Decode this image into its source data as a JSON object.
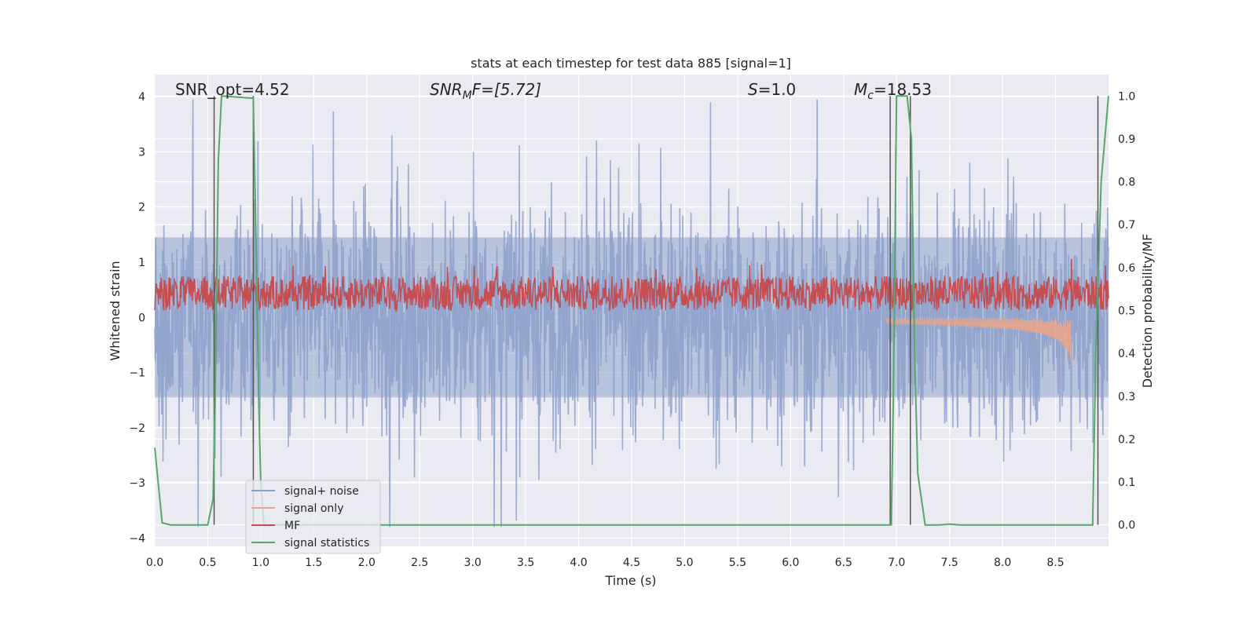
{
  "chart_data": {
    "type": "line",
    "title": "stats at each timestep for test data 885 [signal=1]",
    "xlabel": "Time (s)",
    "ylabel_left": "Whitened strain",
    "ylabel_right": "Detection probability/MF",
    "xlim": [
      0,
      9.0
    ],
    "ylim_left": [
      -4.15,
      4.4
    ],
    "ylim_right": [
      -0.05,
      1.05
    ],
    "xticks": [
      "0.0",
      "0.5",
      "1.0",
      "1.5",
      "2.0",
      "2.5",
      "3.0",
      "3.5",
      "4.0",
      "4.5",
      "5.0",
      "5.5",
      "6.0",
      "6.5",
      "7.0",
      "7.5",
      "8.0",
      "8.5"
    ],
    "yticks_left": [
      "−4",
      "−3",
      "−2",
      "−1",
      "0",
      "1",
      "2",
      "3",
      "4"
    ],
    "yticks_right": [
      "0.0",
      "0.1",
      "0.2",
      "0.3",
      "0.4",
      "0.5",
      "0.6",
      "0.7",
      "0.8",
      "0.9",
      "1.0"
    ],
    "grid": true,
    "legend_position": "lower-left",
    "annotations": {
      "snr_opt": "SNR_opt=4.52",
      "snr_mf_label": "SNR",
      "snr_mf_sub": "M",
      "snr_mf_value": "F=[5.72]",
      "s_label": "S",
      "s_value": "=1.0",
      "mc_label": "M",
      "mc_sub": "c",
      "mc_value": "=18.53"
    },
    "series": [
      {
        "name": "signal+ noise",
        "color": "#8da0cb",
        "axis": "left",
        "description_values": {
          "approx_range": [
            -3.8,
            3.95
          ],
          "typical_envelope": [
            -2.3,
            2.3
          ]
        }
      },
      {
        "name": "signal only",
        "color": "#e8a58c",
        "axis": "left",
        "chirp": {
          "start_t": 6.9,
          "peak_t": 8.65,
          "peak_amp": -0.85
        }
      },
      {
        "name": "MF",
        "color": "#c44e52",
        "axis": "right",
        "typical_range": [
          0.5,
          0.58
        ],
        "spike": {
          "t": 8.65,
          "value": 0.62
        }
      },
      {
        "name": "signal statistics",
        "color": "#55a868",
        "axis": "right",
        "points": [
          [
            0.0,
            0.18
          ],
          [
            0.07,
            0.005
          ],
          [
            0.15,
            0.0
          ],
          [
            0.5,
            0.0
          ],
          [
            0.55,
            0.06
          ],
          [
            0.57,
            0.3
          ],
          [
            0.6,
            0.85
          ],
          [
            0.63,
            1.0
          ],
          [
            0.93,
            0.995
          ],
          [
            0.96,
            0.6
          ],
          [
            0.98,
            0.3
          ],
          [
            1.0,
            0.1
          ],
          [
            1.03,
            0.0
          ],
          [
            6.95,
            0.0
          ],
          [
            6.97,
            0.3
          ],
          [
            7.0,
            1.0
          ],
          [
            7.1,
            1.0
          ],
          [
            7.14,
            0.9
          ],
          [
            7.17,
            0.4
          ],
          [
            7.2,
            0.12
          ],
          [
            7.27,
            0.0
          ],
          [
            7.4,
            0.0
          ],
          [
            7.5,
            0.002
          ],
          [
            7.6,
            0.0
          ],
          [
            8.85,
            0.0
          ],
          [
            8.88,
            0.4
          ],
          [
            8.93,
            0.8
          ],
          [
            9.0,
            1.0
          ]
        ]
      }
    ],
    "vertical_lines_t": [
      0.56,
      0.93,
      6.94,
      7.13,
      8.9
    ]
  }
}
